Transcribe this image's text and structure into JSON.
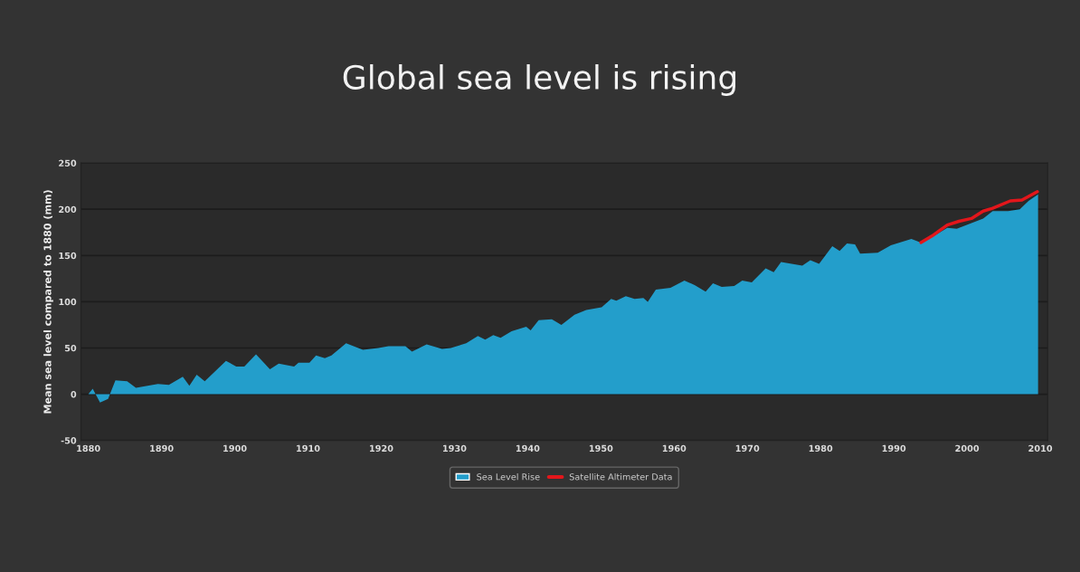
{
  "chart_data": {
    "type": "area",
    "title": "Global sea level is rising",
    "ylabel": "Mean sea level compared to 1880 (mm)",
    "xlim": [
      1879,
      2011
    ],
    "xticks": [
      1880,
      1890,
      1900,
      1910,
      1920,
      1930,
      1940,
      1950,
      1960,
      1970,
      1980,
      1990,
      2000,
      2010
    ],
    "ylim": [
      -50,
      250
    ],
    "yticks": [
      -50,
      0,
      50,
      100,
      150,
      200,
      250
    ],
    "grid": "y",
    "legend": "bottom",
    "series": [
      {
        "name": "Sea Level Rise",
        "color": "#239ecb",
        "x": [
          1880,
          1880.6,
          1881.6,
          1882.7,
          1883.7,
          1885.3,
          1886.5,
          1889.5,
          1891,
          1892.9,
          1893.8,
          1894.8,
          1895.9,
          1898.8,
          1900.2,
          1901.3,
          1902.9,
          1904.8,
          1906,
          1908.1,
          1908.7,
          1910.2,
          1911.1,
          1912.3,
          1913.2,
          1915.2,
          1917.5,
          1919.6,
          1921,
          1923.3,
          1924.2,
          1926.2,
          1928.3,
          1929.5,
          1931.6,
          1933.2,
          1934.2,
          1935.3,
          1936.3,
          1937.8,
          1939.8,
          1940.4,
          1941.5,
          1943.3,
          1944.6,
          1946.4,
          1948,
          1950.1,
          1951.4,
          1952.1,
          1953.4,
          1954.6,
          1955.8,
          1956.4,
          1957.5,
          1959.5,
          1961.4,
          1962.8,
          1964.3,
          1965.3,
          1966.5,
          1968.2,
          1969.3,
          1970.6,
          1972.5,
          1973.6,
          1974.6,
          1977.5,
          1978.6,
          1979.8,
          1981.6,
          1982.6,
          1983.6,
          1984.7,
          1985.4,
          1987.8,
          1989.6,
          1992.4,
          1993.7,
          1995.7,
          1997.3,
          1998.6,
          2000.6,
          2002.2,
          2003.5,
          2005.6,
          2007.2,
          2008.4,
          2009.7
        ],
        "values": [
          0,
          6,
          -9,
          -5,
          15,
          14,
          7,
          11,
          10,
          19,
          9,
          21,
          14,
          36,
          30,
          30,
          43,
          27,
          33,
          30,
          34,
          34,
          42,
          39,
          42,
          55,
          48,
          50,
          52,
          52,
          46,
          54,
          49,
          50,
          55,
          63,
          59,
          64,
          61,
          68,
          73,
          69,
          80,
          81,
          75,
          86,
          91,
          94,
          103,
          101,
          106,
          103,
          104,
          100,
          113,
          115,
          123,
          118,
          111,
          120,
          116,
          117,
          123,
          121,
          136,
          132,
          143,
          139,
          145,
          141,
          160,
          155,
          163,
          162,
          152,
          153,
          161,
          168,
          164,
          172,
          180,
          179,
          185,
          190,
          198,
          198,
          200,
          209,
          216
        ]
      },
      {
        "name": "Satellite Altimeter Data",
        "type": "line",
        "color": "#e3161b",
        "x": [
          1993.7,
          1995.2,
          1997.3,
          1998.9,
          2000.6,
          2002.2,
          2003.5,
          2005.9,
          2007.5,
          2009.6
        ],
        "values": [
          164,
          171,
          183,
          187,
          190,
          198,
          201,
          209,
          210,
          219
        ]
      }
    ]
  }
}
